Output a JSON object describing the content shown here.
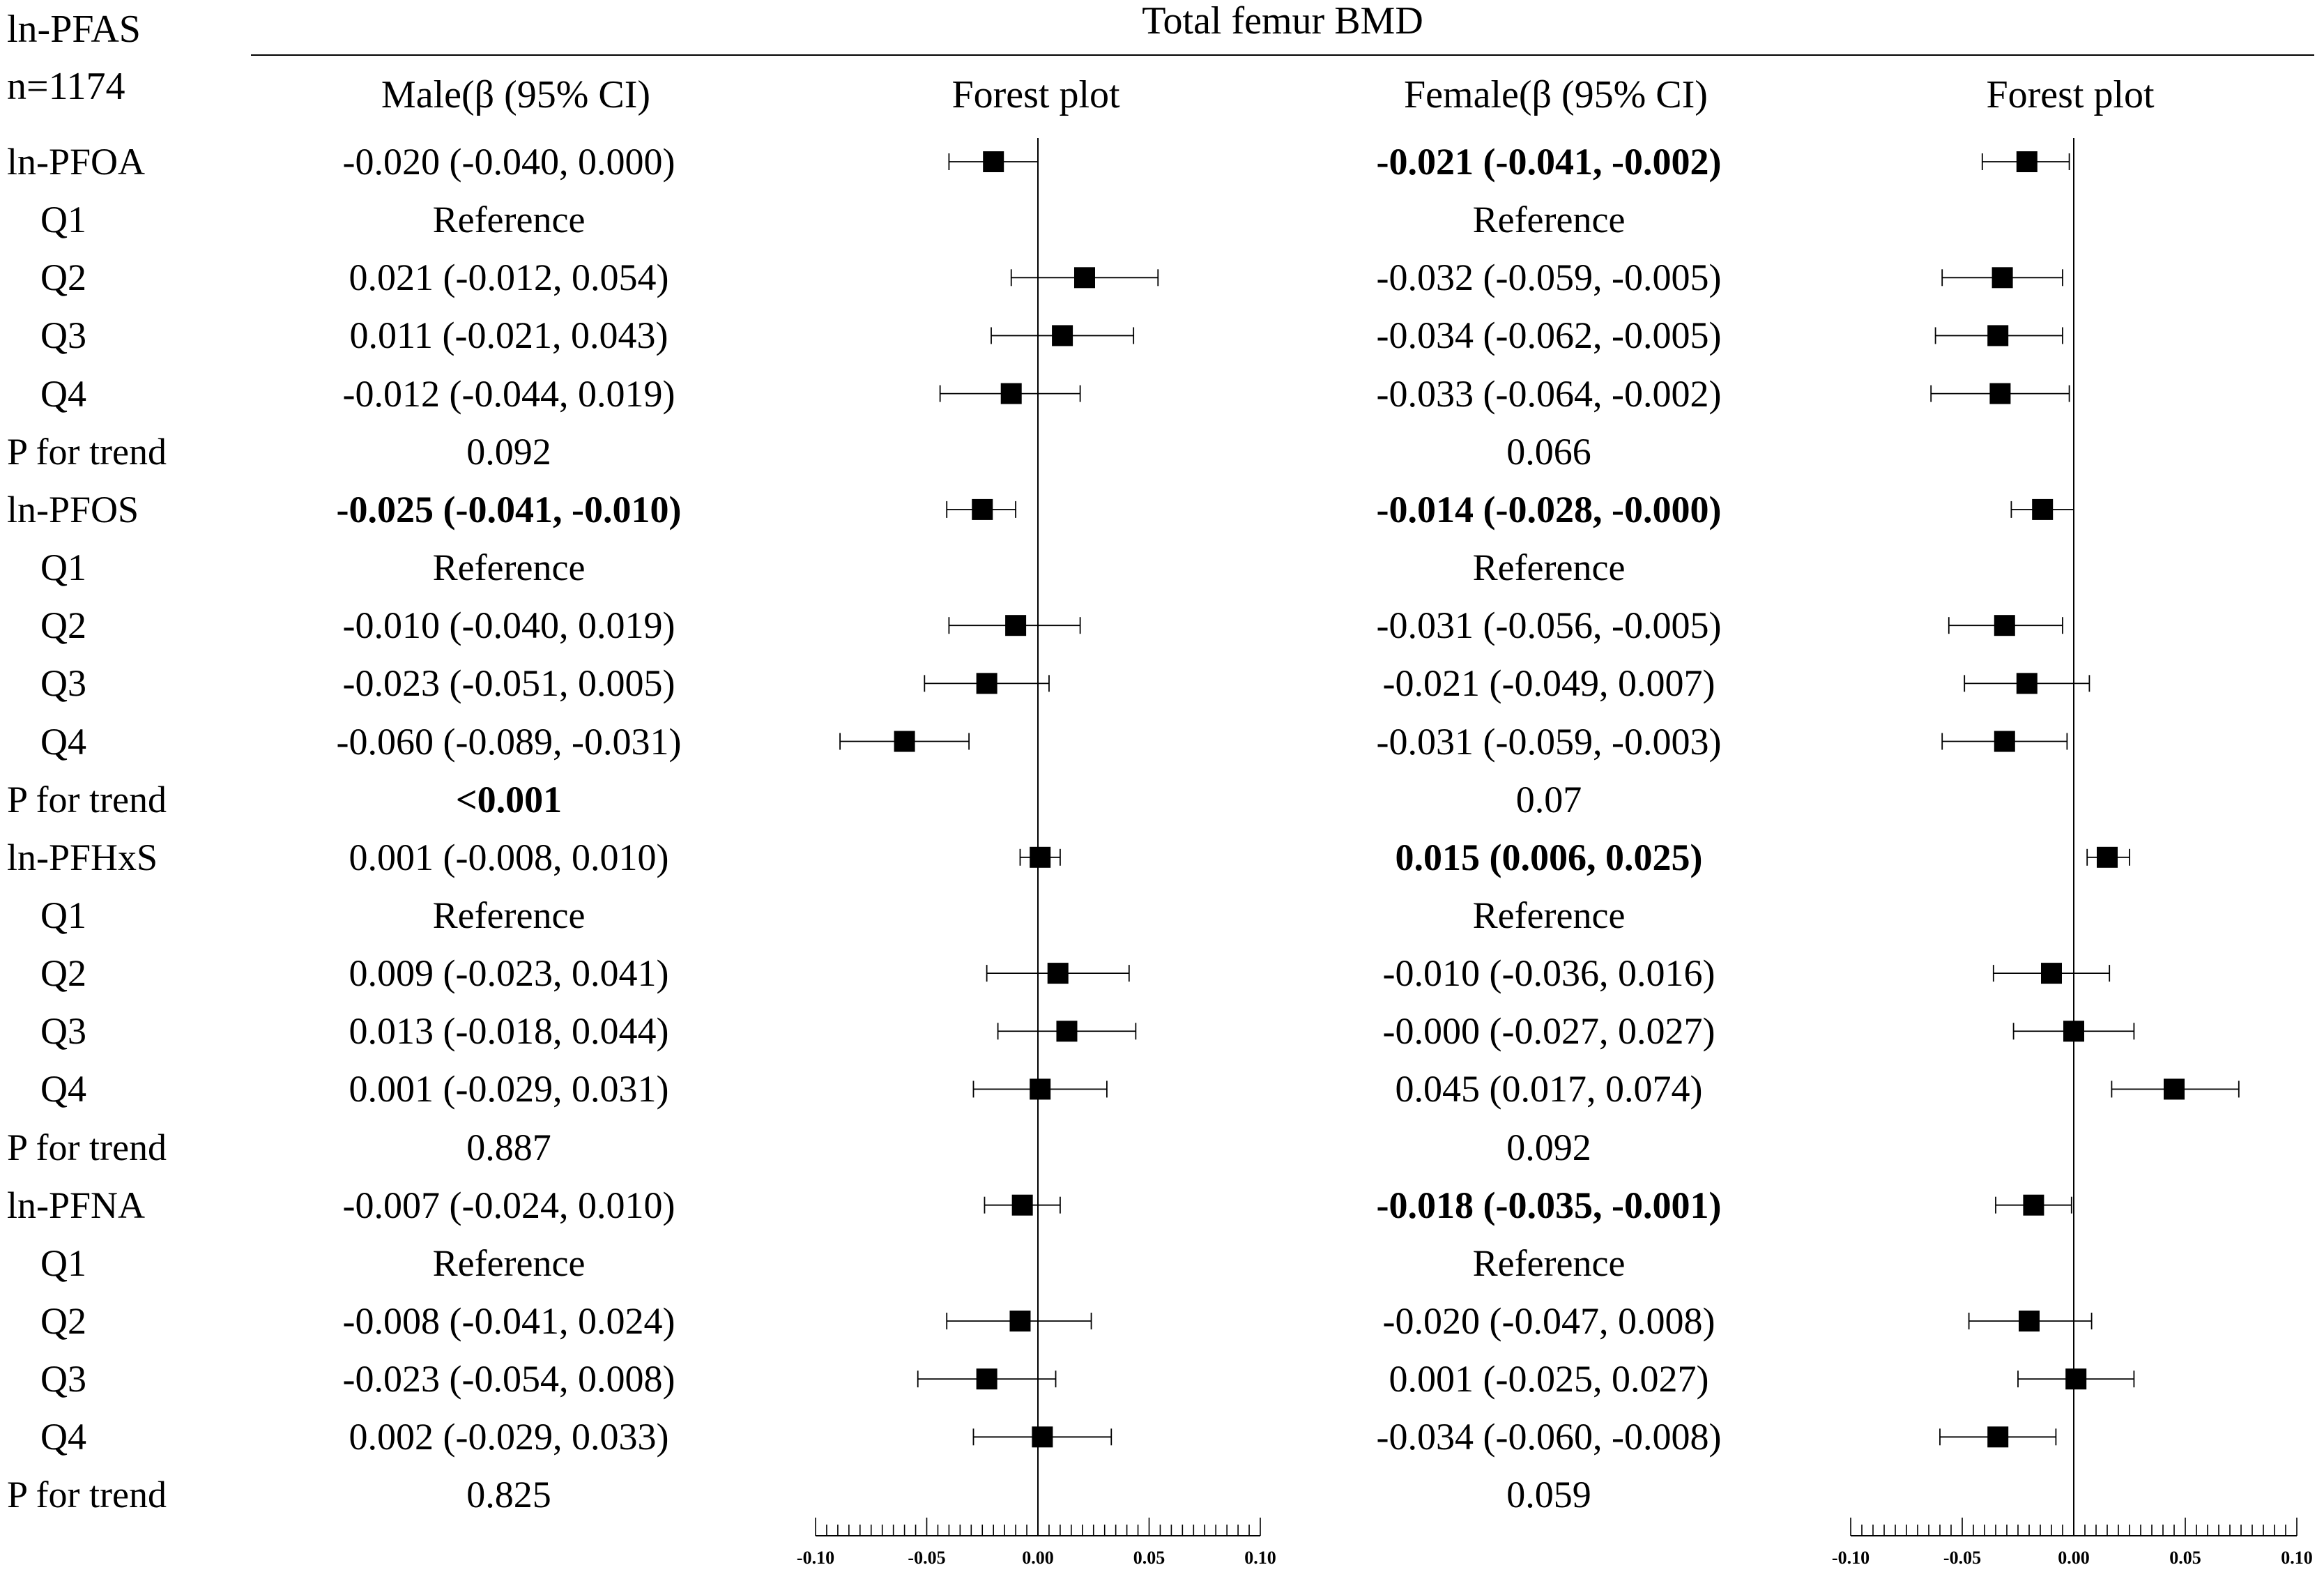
{
  "header": {
    "corner_line1": "ln-PFAS",
    "corner_line2": "n=1174",
    "group_title": "Total femur BMD",
    "male_col": "Male(β (95% CI)",
    "male_plot": "Forest plot",
    "female_col": "Female(β (95% CI)",
    "female_plot": "Forest plot"
  },
  "rows": [
    {
      "label": "ln-PFOA",
      "indent": false,
      "male": "-0.020 (-0.040, 0.000)",
      "male_bold": false,
      "female": "-0.021 (-0.041, -0.002)",
      "female_bold": true
    },
    {
      "label": "Q1",
      "indent": true,
      "male": "Reference",
      "male_bold": false,
      "female": "Reference",
      "female_bold": false
    },
    {
      "label": "Q2",
      "indent": true,
      "male": "0.021 (-0.012, 0.054)",
      "male_bold": false,
      "female": "-0.032 (-0.059, -0.005)",
      "female_bold": false
    },
    {
      "label": "Q3",
      "indent": true,
      "male": "0.011 (-0.021, 0.043)",
      "male_bold": false,
      "female": "-0.034 (-0.062, -0.005)",
      "female_bold": false
    },
    {
      "label": "Q4",
      "indent": true,
      "male": "-0.012 (-0.044, 0.019)",
      "male_bold": false,
      "female": "-0.033 (-0.064, -0.002)",
      "female_bold": false
    },
    {
      "label": "P for trend",
      "indent": false,
      "male": "0.092",
      "male_bold": false,
      "female": "0.066",
      "female_bold": false
    },
    {
      "label": "ln-PFOS",
      "indent": false,
      "male": "-0.025 (-0.041, -0.010)",
      "male_bold": true,
      "female": "-0.014 (-0.028, -0.000)",
      "female_bold": true
    },
    {
      "label": "Q1",
      "indent": true,
      "male": "Reference",
      "male_bold": false,
      "female": "Reference",
      "female_bold": false
    },
    {
      "label": "Q2",
      "indent": true,
      "male": "-0.010 (-0.040, 0.019)",
      "male_bold": false,
      "female": "-0.031 (-0.056, -0.005)",
      "female_bold": false
    },
    {
      "label": "Q3",
      "indent": true,
      "male": "-0.023 (-0.051, 0.005)",
      "male_bold": false,
      "female": "-0.021 (-0.049, 0.007)",
      "female_bold": false
    },
    {
      "label": "Q4",
      "indent": true,
      "male": "-0.060 (-0.089, -0.031)",
      "male_bold": false,
      "female": "-0.031 (-0.059, -0.003)",
      "female_bold": false
    },
    {
      "label": "P for trend",
      "indent": false,
      "male": "<0.001",
      "male_bold": true,
      "female": "0.07",
      "female_bold": false
    },
    {
      "label": "ln-PFHxS",
      "indent": false,
      "male": "0.001 (-0.008, 0.010)",
      "male_bold": false,
      "female": "0.015 (0.006, 0.025)",
      "female_bold": true
    },
    {
      "label": "Q1",
      "indent": true,
      "male": "Reference",
      "male_bold": false,
      "female": "Reference",
      "female_bold": false
    },
    {
      "label": "Q2",
      "indent": true,
      "male": "0.009 (-0.023, 0.041)",
      "male_bold": false,
      "female": "-0.010 (-0.036, 0.016)",
      "female_bold": false
    },
    {
      "label": "Q3",
      "indent": true,
      "male": "0.013 (-0.018, 0.044)",
      "male_bold": false,
      "female": "-0.000 (-0.027, 0.027)",
      "female_bold": false
    },
    {
      "label": "Q4",
      "indent": true,
      "male": "0.001 (-0.029, 0.031)",
      "male_bold": false,
      "female": "0.045 (0.017, 0.074)",
      "female_bold": false
    },
    {
      "label": "P for trend",
      "indent": false,
      "male": "0.887",
      "male_bold": false,
      "female": "0.092",
      "female_bold": false
    },
    {
      "label": "ln-PFNA",
      "indent": false,
      "male": "-0.007 (-0.024, 0.010)",
      "male_bold": false,
      "female": "-0.018 (-0.035, -0.001)",
      "female_bold": true
    },
    {
      "label": "Q1",
      "indent": true,
      "male": "Reference",
      "male_bold": false,
      "female": "Reference",
      "female_bold": false
    },
    {
      "label": "Q2",
      "indent": true,
      "male": "-0.008 (-0.041, 0.024)",
      "male_bold": false,
      "female": "-0.020 (-0.047, 0.008)",
      "female_bold": false
    },
    {
      "label": "Q3",
      "indent": true,
      "male": "-0.023 (-0.054, 0.008)",
      "male_bold": false,
      "female": "0.001 (-0.025, 0.027)",
      "female_bold": false
    },
    {
      "label": "Q4",
      "indent": true,
      "male": "0.002 (-0.029, 0.033)",
      "male_bold": false,
      "female": "-0.034 (-0.060, -0.008)",
      "female_bold": false
    },
    {
      "label": "P for trend",
      "indent": false,
      "male": "0.825",
      "male_bold": false,
      "female": "0.059",
      "female_bold": false
    }
  ],
  "chart_data": [
    {
      "type": "scatter",
      "subtype": "forest",
      "name": "male",
      "title": "Forest plot",
      "xlim": [
        -0.1,
        0.1
      ],
      "ticks": [
        "-0.10",
        "-0.05",
        "0.00",
        "0.05",
        "0.10"
      ],
      "reference_line": 0,
      "points": [
        {
          "row": 0,
          "est": -0.02,
          "lo": -0.04,
          "hi": 0.0
        },
        {
          "row": 2,
          "est": 0.021,
          "lo": -0.012,
          "hi": 0.054
        },
        {
          "row": 3,
          "est": 0.011,
          "lo": -0.021,
          "hi": 0.043
        },
        {
          "row": 4,
          "est": -0.012,
          "lo": -0.044,
          "hi": 0.019
        },
        {
          "row": 6,
          "est": -0.025,
          "lo": -0.041,
          "hi": -0.01
        },
        {
          "row": 8,
          "est": -0.01,
          "lo": -0.04,
          "hi": 0.019
        },
        {
          "row": 9,
          "est": -0.023,
          "lo": -0.051,
          "hi": 0.005
        },
        {
          "row": 10,
          "est": -0.06,
          "lo": -0.089,
          "hi": -0.031
        },
        {
          "row": 12,
          "est": 0.001,
          "lo": -0.008,
          "hi": 0.01
        },
        {
          "row": 14,
          "est": 0.009,
          "lo": -0.023,
          "hi": 0.041
        },
        {
          "row": 15,
          "est": 0.013,
          "lo": -0.018,
          "hi": 0.044
        },
        {
          "row": 16,
          "est": 0.001,
          "lo": -0.029,
          "hi": 0.031
        },
        {
          "row": 18,
          "est": -0.007,
          "lo": -0.024,
          "hi": 0.01
        },
        {
          "row": 20,
          "est": -0.008,
          "lo": -0.041,
          "hi": 0.024
        },
        {
          "row": 21,
          "est": -0.023,
          "lo": -0.054,
          "hi": 0.008
        },
        {
          "row": 22,
          "est": 0.002,
          "lo": -0.029,
          "hi": 0.033
        }
      ]
    },
    {
      "type": "scatter",
      "subtype": "forest",
      "name": "female",
      "title": "Forest plot",
      "xlim": [
        -0.1,
        0.1
      ],
      "ticks": [
        "-0.10",
        "-0.05",
        "0.00",
        "0.05",
        "0.10"
      ],
      "reference_line": 0,
      "points": [
        {
          "row": 0,
          "est": -0.021,
          "lo": -0.041,
          "hi": -0.002
        },
        {
          "row": 2,
          "est": -0.032,
          "lo": -0.059,
          "hi": -0.005
        },
        {
          "row": 3,
          "est": -0.034,
          "lo": -0.062,
          "hi": -0.005
        },
        {
          "row": 4,
          "est": -0.033,
          "lo": -0.064,
          "hi": -0.002
        },
        {
          "row": 6,
          "est": -0.014,
          "lo": -0.028,
          "hi": -0.0
        },
        {
          "row": 8,
          "est": -0.031,
          "lo": -0.056,
          "hi": -0.005
        },
        {
          "row": 9,
          "est": -0.021,
          "lo": -0.049,
          "hi": 0.007
        },
        {
          "row": 10,
          "est": -0.031,
          "lo": -0.059,
          "hi": -0.003
        },
        {
          "row": 12,
          "est": 0.015,
          "lo": 0.006,
          "hi": 0.025
        },
        {
          "row": 14,
          "est": -0.01,
          "lo": -0.036,
          "hi": 0.016
        },
        {
          "row": 15,
          "est": -0.0,
          "lo": -0.027,
          "hi": 0.027
        },
        {
          "row": 16,
          "est": 0.045,
          "lo": 0.017,
          "hi": 0.074
        },
        {
          "row": 18,
          "est": -0.018,
          "lo": -0.035,
          "hi": -0.001
        },
        {
          "row": 20,
          "est": -0.02,
          "lo": -0.047,
          "hi": 0.008
        },
        {
          "row": 21,
          "est": 0.001,
          "lo": -0.025,
          "hi": 0.027
        },
        {
          "row": 22,
          "est": -0.034,
          "lo": -0.06,
          "hi": -0.008
        }
      ]
    }
  ]
}
